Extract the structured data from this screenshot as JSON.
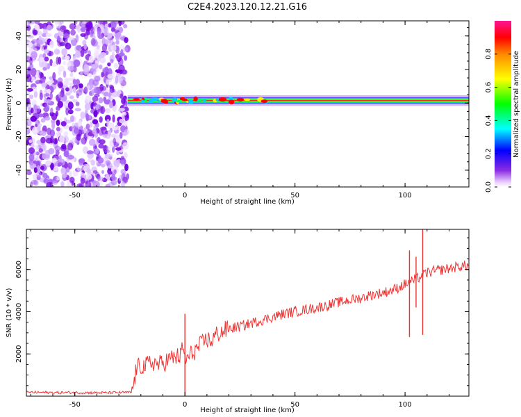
{
  "title": "C2E4.2023.120.12.21.G16",
  "chart_data": [
    {
      "type": "heatmap",
      "xlabel": "Height of straight line (km)",
      "ylabel": "Frequency (Hz)",
      "xlim": [
        -72,
        129
      ],
      "ylim": [
        -50,
        49
      ],
      "xticks": [
        -50,
        0,
        50,
        100
      ],
      "yticks": [
        -40,
        -20,
        0,
        20,
        40
      ],
      "grid": false,
      "noise_region_x": [
        -72,
        -26
      ],
      "signal_band": {
        "x_range": [
          -26,
          129
        ],
        "center_hz": 1.5,
        "half_width_hz": 2
      },
      "colorbar": {
        "label": "Normalized spectral amplitude",
        "range": [
          0.0,
          1.0
        ],
        "ticks": [
          0.0,
          0.2,
          0.4,
          0.6,
          0.8
        ],
        "tick_labels": [
          "0.0",
          "0.2",
          "0.4",
          "0.6",
          "0.8"
        ],
        "colormap": "rainbow (white-violet-blue-cyan-green-yellow-red-pink)"
      }
    },
    {
      "type": "line",
      "xlabel": "Height of straight line (km)",
      "ylabel": "SNR (10 * v/v)",
      "xlim": [
        -72,
        129
      ],
      "ylim": [
        0,
        7900
      ],
      "xticks": [
        -50,
        0,
        50,
        100
      ],
      "yticks": [
        2000,
        4000,
        6000
      ],
      "grid": false,
      "series": [
        {
          "color": "#ee3333",
          "x": [
            -72,
            -60,
            -50,
            -40,
            -30,
            -24,
            -22,
            -20,
            -18,
            -16,
            -14,
            -12,
            -10,
            -8,
            -6,
            -4,
            -2,
            -1,
            0,
            1,
            2,
            4,
            6,
            8,
            10,
            12,
            14,
            16,
            18,
            20,
            25,
            30,
            35,
            40,
            45,
            50,
            55,
            60,
            65,
            70,
            75,
            80,
            85,
            90,
            95,
            100,
            102,
            104,
            106,
            108,
            110,
            115,
            120,
            125,
            129
          ],
          "values": [
            180,
            170,
            170,
            160,
            170,
            180,
            1300,
            1450,
            1400,
            1550,
            1600,
            1500,
            1550,
            1700,
            1800,
            1850,
            1900,
            2300,
            1800,
            1700,
            1900,
            2100,
            2300,
            2500,
            2700,
            2600,
            2900,
            3000,
            3100,
            3200,
            3300,
            3450,
            3600,
            3750,
            3900,
            4000,
            4100,
            4200,
            4300,
            4450,
            4550,
            4650,
            4800,
            4900,
            5050,
            5300,
            5400,
            5500,
            5600,
            5700,
            5850,
            5950,
            6050,
            6150,
            6200
          ]
        }
      ],
      "spikes": [
        {
          "x": 0,
          "low": 100,
          "high": 3900
        },
        {
          "x": 102,
          "low": 2800,
          "high": 6900
        },
        {
          "x": 105,
          "low": 4200,
          "high": 6600
        },
        {
          "x": 108,
          "low": 2900,
          "high": 7900
        }
      ]
    }
  ]
}
